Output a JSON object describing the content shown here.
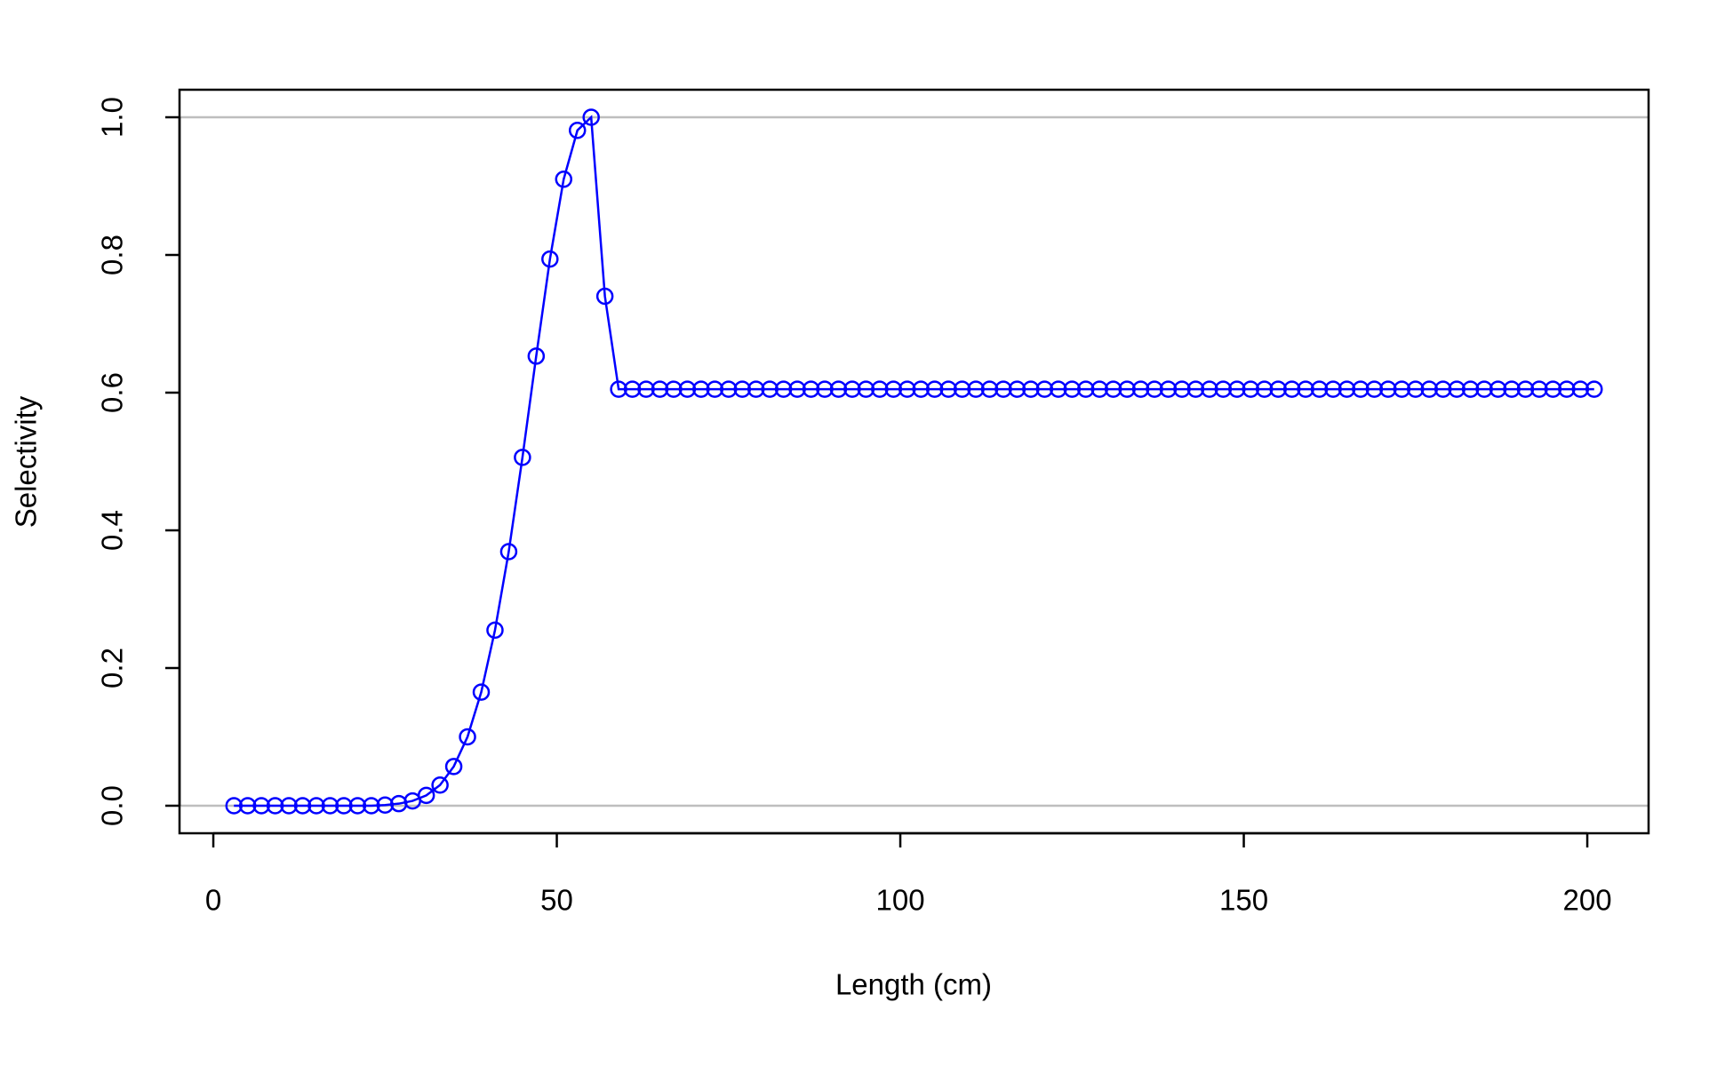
{
  "chart_data": {
    "type": "line",
    "x_label": "Length (cm)",
    "y_label": "Selectivity",
    "x": [
      3,
      5,
      7,
      9,
      11,
      13,
      15,
      17,
      19,
      21,
      23,
      25,
      27,
      29,
      31,
      33,
      35,
      37,
      39,
      41,
      43,
      45,
      47,
      49,
      51,
      53,
      55,
      57,
      59,
      61,
      63,
      65,
      67,
      69,
      71,
      73,
      75,
      77,
      79,
      81,
      83,
      85,
      87,
      89,
      91,
      93,
      95,
      97,
      99,
      101,
      103,
      105,
      107,
      109,
      111,
      113,
      115,
      117,
      119,
      121,
      123,
      125,
      127,
      129,
      131,
      133,
      135,
      137,
      139,
      141,
      143,
      145,
      147,
      149,
      151,
      153,
      155,
      157,
      159,
      161,
      163,
      165,
      167,
      169,
      171,
      173,
      175,
      177,
      179,
      181,
      183,
      185,
      187,
      189,
      191,
      193,
      195,
      197,
      199,
      201
    ],
    "series": [
      {
        "color": "#0000ff",
        "values": [
          0,
          0,
          0,
          0,
          0,
          0,
          0,
          0,
          0,
          0,
          0,
          0.001,
          0.003,
          0.007,
          0.015,
          0.03,
          0.057,
          0.1,
          0.165,
          0.255,
          0.369,
          0.506,
          0.653,
          0.794,
          0.91,
          0.981,
          1.0,
          0.74,
          0.605,
          0.605,
          0.605,
          0.605,
          0.605,
          0.605,
          0.605,
          0.605,
          0.605,
          0.605,
          0.605,
          0.605,
          0.605,
          0.605,
          0.605,
          0.605,
          0.605,
          0.605,
          0.605,
          0.605,
          0.605,
          0.605,
          0.605,
          0.605,
          0.605,
          0.605,
          0.605,
          0.605,
          0.605,
          0.605,
          0.605,
          0.605,
          0.605,
          0.605,
          0.605,
          0.605,
          0.605,
          0.605,
          0.605,
          0.605,
          0.605,
          0.605,
          0.605,
          0.605,
          0.605,
          0.605,
          0.605,
          0.605,
          0.605,
          0.605,
          0.605,
          0.605,
          0.605,
          0.605,
          0.605,
          0.605,
          0.605,
          0.605,
          0.605,
          0.605,
          0.605,
          0.605,
          0.605,
          0.605,
          0.605,
          0.605,
          0.605,
          0.605,
          0.605,
          0.605,
          0.605,
          0.605
        ]
      }
    ],
    "xlim": [
      -4.92,
      208.92
    ],
    "xticks": [
      0,
      50,
      100,
      150,
      200
    ],
    "ylim": [
      -0.04,
      1.04
    ],
    "yticks": [
      {
        "value": 0,
        "label": "0.0"
      },
      0.2,
      0.4,
      0.6,
      0.8,
      {
        "value": 1,
        "label": "1.0"
      }
    ],
    "hlines": [
      0,
      1
    ],
    "hline_color": "#bebebe"
  }
}
